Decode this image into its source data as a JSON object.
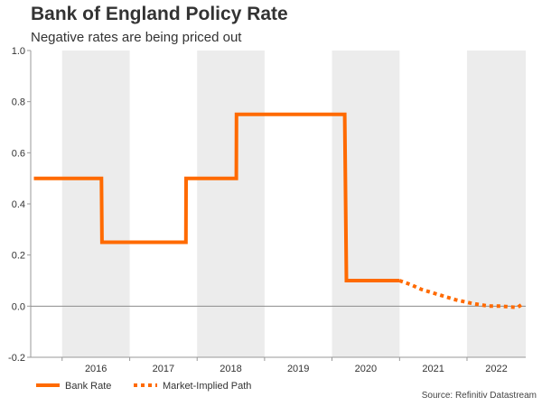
{
  "header": {
    "title": "Bank of England Policy Rate",
    "subtitle": "Negative rates are being priced out"
  },
  "footer": {
    "source": "Source: Refinitiv Datastream"
  },
  "colors": {
    "series": "#ff6a00",
    "band": "#ececec",
    "axis": "#999999",
    "zero_line": "#8c8c8c"
  },
  "chart_data": {
    "type": "line",
    "title": "Bank of England Policy Rate",
    "subtitle": "Negative rates are being priced out",
    "xlabel": "",
    "ylabel": "",
    "xlim": [
      "2015-07-15",
      "2022-11-15"
    ],
    "ylim": [
      -0.2,
      1.0
    ],
    "yticks": [
      -0.2,
      0.0,
      0.2,
      0.4,
      0.6,
      0.8,
      1.0
    ],
    "ytick_labels": [
      "-0.2",
      "0.0",
      "0.2",
      "0.4",
      "0.6",
      "0.8",
      "1.0"
    ],
    "x_year_labels": [
      "2016",
      "2017",
      "2018",
      "2019",
      "2020",
      "2021",
      "2022"
    ],
    "shaded_years": [
      "2016",
      "2018",
      "2020",
      "2022"
    ],
    "grid": false,
    "legend_position": "bottom-left",
    "series": [
      {
        "name": "Bank Rate",
        "style": "solid",
        "points": [
          [
            "2015-08-01",
            0.5
          ],
          [
            "2016-08-01",
            0.5
          ],
          [
            "2016-08-04",
            0.25
          ],
          [
            "2017-11-01",
            0.25
          ],
          [
            "2017-11-02",
            0.5
          ],
          [
            "2018-08-01",
            0.5
          ],
          [
            "2018-08-02",
            0.75
          ],
          [
            "2020-03-10",
            0.75
          ],
          [
            "2020-03-19",
            0.1
          ],
          [
            "2020-12-31",
            0.1
          ]
        ]
      },
      {
        "name": "Market-Implied Path",
        "style": "dashed",
        "points": [
          [
            "2020-12-31",
            0.1
          ],
          [
            "2021-03-01",
            0.085
          ],
          [
            "2021-05-01",
            0.065
          ],
          [
            "2021-08-01",
            0.045
          ],
          [
            "2021-11-01",
            0.025
          ],
          [
            "2022-02-01",
            0.01
          ],
          [
            "2022-05-01",
            0.0
          ],
          [
            "2022-07-01",
            0.0
          ],
          [
            "2022-10-01",
            -0.005
          ],
          [
            "2022-11-01",
            0.01
          ]
        ]
      }
    ]
  }
}
